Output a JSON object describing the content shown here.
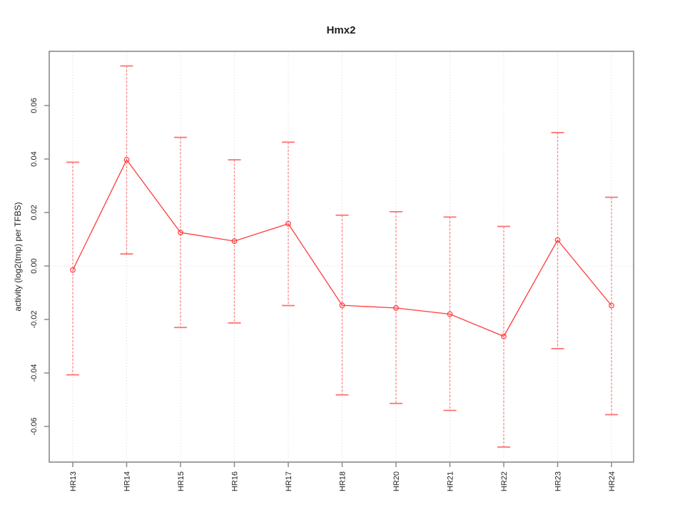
{
  "figure": {
    "background": "#ffffff"
  },
  "chart_data": {
    "type": "line",
    "title": "Hmx2",
    "xlabel": "",
    "ylabel": "activity (log2(tmp) per TFBS)",
    "categories": [
      "HR13",
      "HR14",
      "HR15",
      "HR16",
      "HR17",
      "HR18",
      "HR20",
      "HR21",
      "HR22",
      "HR23",
      "HR24"
    ],
    "series": [
      {
        "name": "activity",
        "values": [
          -0.0015,
          0.0397,
          0.0125,
          0.0093,
          0.0158,
          -0.0147,
          -0.0157,
          -0.018,
          -0.0263,
          0.0097,
          -0.0148
        ],
        "upper": [
          0.0388,
          0.0748,
          0.0481,
          0.0397,
          0.0463,
          0.019,
          0.0203,
          0.0183,
          0.0148,
          0.0499,
          0.0257
        ],
        "lower": [
          -0.0407,
          0.0045,
          -0.023,
          -0.0213,
          -0.0148,
          -0.0482,
          -0.0514,
          -0.054,
          -0.0677,
          -0.0309,
          -0.0556
        ]
      }
    ],
    "ylim": [
      -0.072,
      0.078
    ],
    "yticks": [
      -0.06,
      -0.04,
      -0.02,
      0,
      0.02,
      0.04,
      0.06
    ],
    "ytick_labels": [
      "-0.06",
      "-0.04",
      "-0.02",
      "0.00",
      "0.02",
      "0.04",
      "0.06"
    ],
    "legend_position": "none",
    "grid": {
      "vertical_dotted": true,
      "horizontal_zero_dotted": true
    },
    "marker": "open-circle",
    "error_bar_style": "dashed",
    "colors": {
      "line": "#ff3b3b",
      "marker": "#ff3b3b",
      "error_bar": "#ff8585",
      "error_cap": "#ff6f6f",
      "grid": "#d9d9d9",
      "axis_frame": "#8a8a8a",
      "tick": "#8a8a8a",
      "tick_label": "#1f1f1f"
    }
  }
}
